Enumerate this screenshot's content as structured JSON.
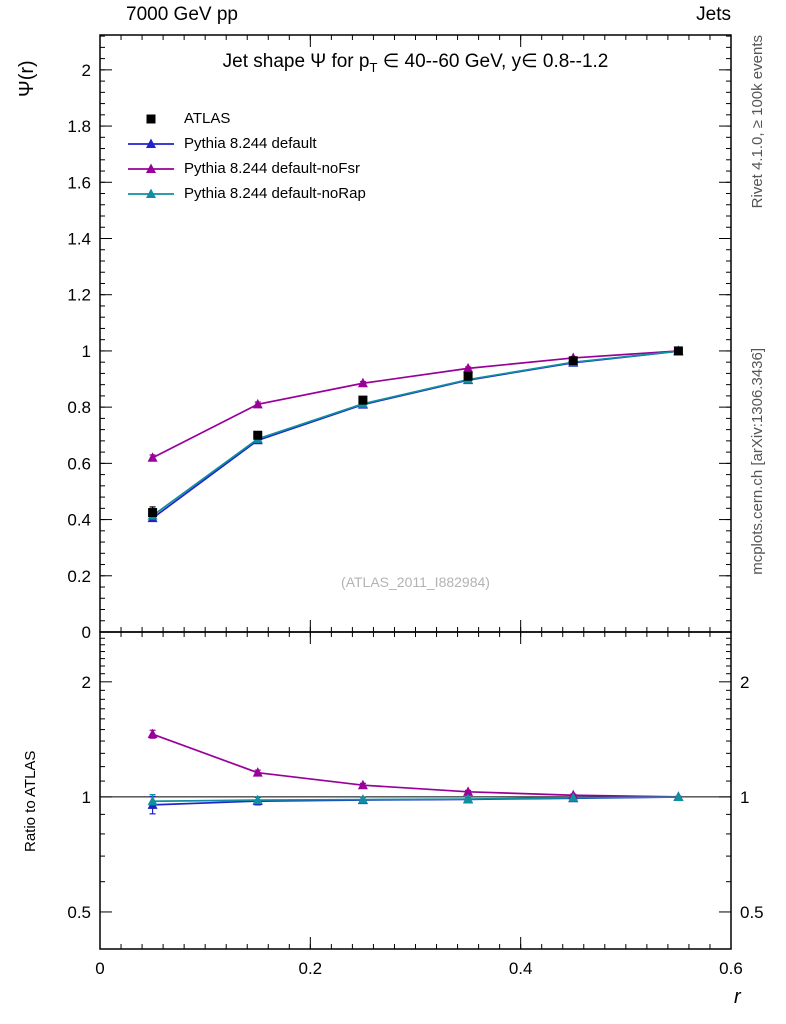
{
  "header": {
    "left": "7000 GeV pp",
    "right": "Jets"
  },
  "axes": {
    "main_y_label": "Ψ(r)",
    "ratio_y_label": "Ratio to ATLAS",
    "x_label": "r"
  },
  "title_parts": {
    "pre": "Jet shape Ψ for p",
    "sub": "T",
    "post": " ∈ 40--60 GeV, y∈ 0.8--1.2"
  },
  "watermark": "(ATLAS_2011_I882984)",
  "side_notes": {
    "right_top": "Rivet 4.1.0, ≥ 100k events",
    "right_bottom": "mcplots.cern.ch [arXiv:1306.3436]"
  },
  "chart_data": {
    "type": "line",
    "x": [
      0.05,
      0.15,
      0.25,
      0.35,
      0.45,
      0.55
    ],
    "x_range": [
      0,
      0.6
    ],
    "x_ticks": [
      0,
      0.2,
      0.4,
      0.6
    ],
    "x_minor_step": 0.02,
    "main_y_range": [
      0,
      2.124
    ],
    "main_y_ticks": [
      0,
      0.2,
      0.4,
      0.6,
      0.8,
      1.0,
      1.2,
      1.4,
      1.6,
      1.8,
      2.0
    ],
    "main_y_minor_step": 0.04,
    "ratio_scale": "log",
    "ratio_y_range": [
      0.4,
      2.7
    ],
    "ratio_y_ticks": [
      0.5,
      1,
      2
    ],
    "ratio_y_minor_ticks": [
      0.4,
      0.6,
      0.7,
      0.8,
      0.9,
      1.1,
      1.2,
      1.3,
      1.4,
      1.5,
      1.6,
      1.7,
      1.8,
      1.9,
      2.1,
      2.2,
      2.3,
      2.4,
      2.5,
      2.6
    ],
    "reference_line": 1,
    "series": [
      {
        "name": "ATLAS",
        "kind": "data",
        "marker": "square",
        "color": "#000000",
        "values": [
          0.425,
          0.7,
          0.825,
          0.91,
          0.965,
          1.0
        ],
        "errors": [
          0.02,
          0.013,
          0.01,
          0.007,
          0.005,
          0.002
        ]
      },
      {
        "name": "Pythia 8.244 default",
        "kind": "mc",
        "marker": "triangle",
        "color": "#2222cc",
        "values": [
          0.405,
          0.682,
          0.809,
          0.896,
          0.958,
          0.999
        ],
        "errors": [
          0.01,
          0.008,
          0.006,
          0.005,
          0.004,
          0.002
        ],
        "ratio": [
          0.953,
          0.975,
          0.981,
          0.985,
          0.992,
          0.999
        ],
        "ratio_errors": [
          0.05,
          0.022,
          0.015,
          0.011,
          0.008,
          0.004
        ]
      },
      {
        "name": "Pythia 8.244 default-noFsr",
        "kind": "mc",
        "marker": "triangle",
        "color": "#990099",
        "values": [
          0.62,
          0.81,
          0.885,
          0.938,
          0.975,
          1.0
        ],
        "errors": [
          0.01,
          0.008,
          0.006,
          0.005,
          0.004,
          0.002
        ],
        "ratio": [
          1.459,
          1.157,
          1.073,
          1.031,
          1.01,
          1.0
        ],
        "ratio_errors": [
          0.035,
          0.018,
          0.012,
          0.009,
          0.007,
          0.003
        ]
      },
      {
        "name": "Pythia 8.244 default-noRap",
        "kind": "mc",
        "marker": "triangle",
        "color": "#0f8f9f",
        "values": [
          0.414,
          0.687,
          0.812,
          0.898,
          0.96,
          0.999
        ],
        "errors": [
          0.01,
          0.008,
          0.006,
          0.005,
          0.004,
          0.002
        ],
        "ratio": [
          0.974,
          0.981,
          0.984,
          0.987,
          0.995,
          0.999
        ],
        "ratio_errors": [
          0.04,
          0.02,
          0.014,
          0.01,
          0.008,
          0.004
        ]
      }
    ]
  }
}
